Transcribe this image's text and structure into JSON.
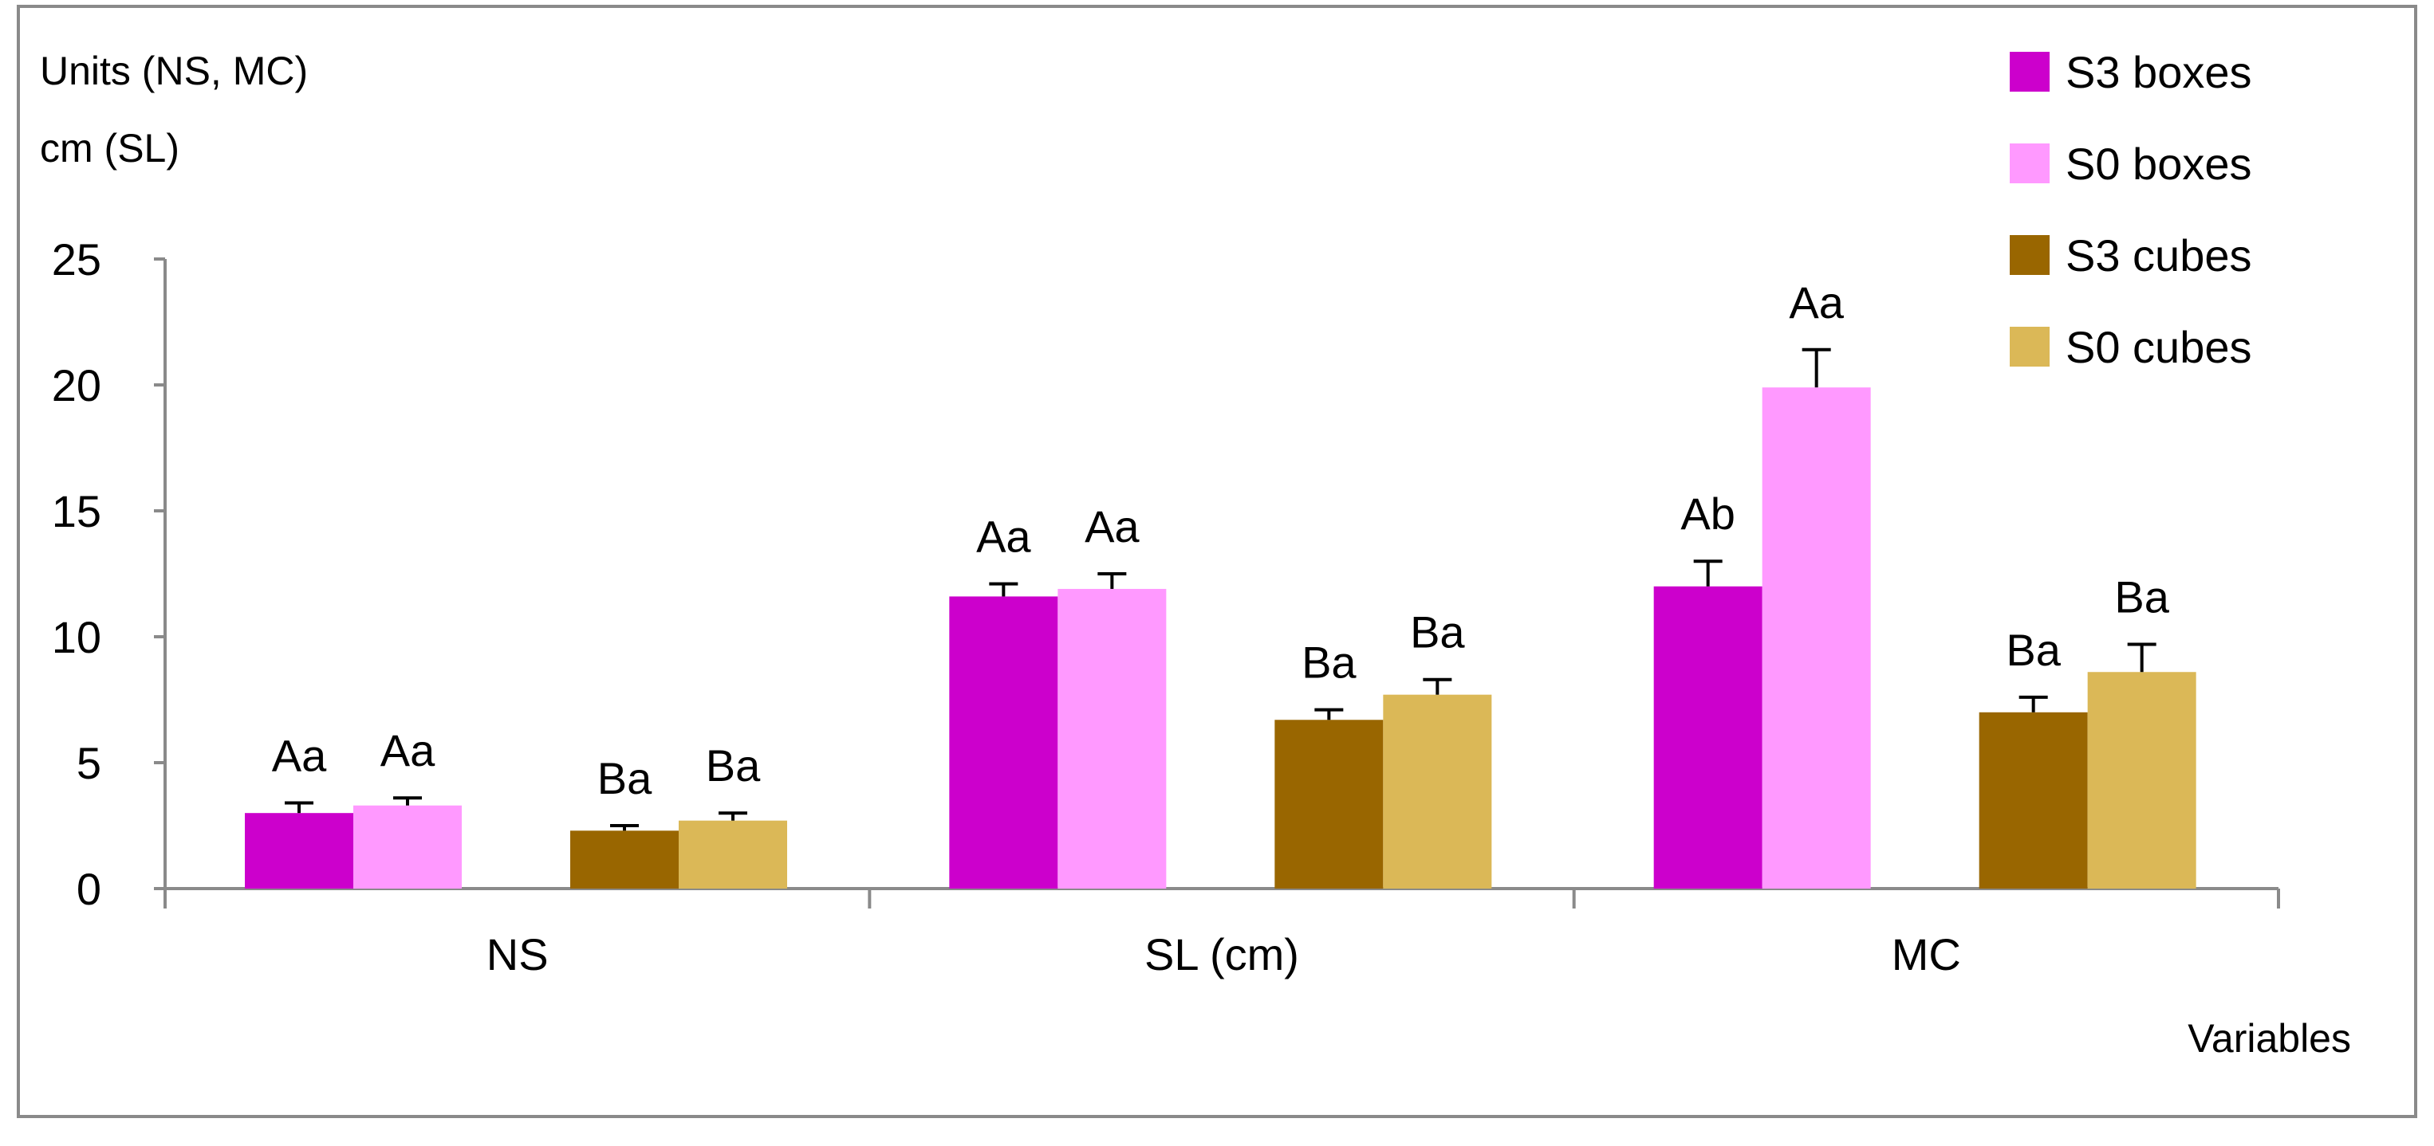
{
  "chart_data": {
    "type": "bar",
    "ylabel_lines": [
      "Units (NS, MC)",
      "cm (SL)"
    ],
    "xlabel": "Variables",
    "ylim": [
      0,
      25
    ],
    "yticks": [
      0,
      5,
      10,
      15,
      20,
      25
    ],
    "grid": false,
    "legend_position": "top-right",
    "categories": [
      "NS",
      "SL (cm)",
      "MC"
    ],
    "series": [
      {
        "name": "S3 boxes",
        "color": "#cc00cc",
        "values": [
          3.0,
          11.6,
          12.0
        ],
        "errors": [
          0.4,
          0.5,
          1.0
        ],
        "labels": [
          "Aa",
          "Aa",
          "Ab"
        ]
      },
      {
        "name": "S0 boxes",
        "color": "#ff99ff",
        "values": [
          3.3,
          11.9,
          19.9
        ],
        "errors": [
          0.3,
          0.6,
          1.5
        ],
        "labels": [
          "Aa",
          "Aa",
          "Aa"
        ]
      },
      {
        "name": "S3 cubes",
        "color": "#996600",
        "values": [
          2.3,
          6.7,
          7.0
        ],
        "errors": [
          0.2,
          0.4,
          0.6
        ],
        "labels": [
          "Ba",
          "Ba",
          "Ba"
        ]
      },
      {
        "name": "S0 cubes",
        "color": "#dbb857",
        "values": [
          2.7,
          7.7,
          8.6
        ],
        "errors": [
          0.3,
          0.6,
          1.1
        ],
        "labels": [
          "Ba",
          "Ba",
          "Ba"
        ]
      }
    ]
  }
}
